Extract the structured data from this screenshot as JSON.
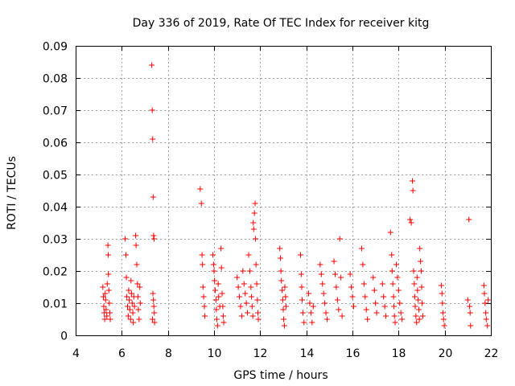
{
  "chart_data": {
    "type": "scatter",
    "title": "Day 336 of 2019, Rate Of TEC Index for receiver kitg",
    "xlabel": "GPS time / hours",
    "ylabel": "ROTI / TECUs",
    "xlim": [
      4,
      22
    ],
    "ylim": [
      0,
      0.09
    ],
    "xticks": [
      4,
      6,
      8,
      10,
      12,
      14,
      16,
      18,
      20,
      22
    ],
    "xtick_labels": [
      "4",
      "6",
      "8",
      "10",
      "12",
      "14",
      "16",
      "18",
      "20",
      "22"
    ],
    "yticks": [
      0,
      0.01,
      0.02,
      0.03,
      0.04,
      0.05,
      0.06,
      0.07,
      0.08,
      0.09
    ],
    "ytick_labels": [
      "0",
      "0.01",
      "0.02",
      "0.03",
      "0.04",
      "0.05",
      "0.06",
      "0.07",
      "0.08",
      "0.09"
    ],
    "grid": true,
    "marker": "+",
    "color": "#ff0000",
    "series": [
      {
        "name": "ROTI",
        "points": [
          [
            5.18,
            0.015
          ],
          [
            5.2,
            0.012
          ],
          [
            5.22,
            0.009
          ],
          [
            5.24,
            0.007
          ],
          [
            5.26,
            0.005
          ],
          [
            5.28,
            0.013
          ],
          [
            5.3,
            0.011
          ],
          [
            5.32,
            0.008
          ],
          [
            5.35,
            0.006
          ],
          [
            5.37,
            0.016
          ],
          [
            5.4,
            0.028
          ],
          [
            5.41,
            0.025
          ],
          [
            5.42,
            0.019
          ],
          [
            5.44,
            0.014
          ],
          [
            5.46,
            0.01
          ],
          [
            5.48,
            0.007
          ],
          [
            5.5,
            0.005
          ],
          [
            6.15,
            0.03
          ],
          [
            6.18,
            0.025
          ],
          [
            6.2,
            0.018
          ],
          [
            6.22,
            0.012
          ],
          [
            6.25,
            0.009
          ],
          [
            6.28,
            0.006
          ],
          [
            6.3,
            0.014
          ],
          [
            6.32,
            0.011
          ],
          [
            6.35,
            0.008
          ],
          [
            6.38,
            0.005
          ],
          [
            6.4,
            0.017
          ],
          [
            6.42,
            0.013
          ],
          [
            6.45,
            0.01
          ],
          [
            6.48,
            0.007
          ],
          [
            6.5,
            0.004
          ],
          [
            6.52,
            0.012
          ],
          [
            6.55,
            0.009
          ],
          [
            6.6,
            0.031
          ],
          [
            6.62,
            0.028
          ],
          [
            6.65,
            0.022
          ],
          [
            6.68,
            0.016
          ],
          [
            6.7,
            0.012
          ],
          [
            6.72,
            0.008
          ],
          [
            6.75,
            0.005
          ],
          [
            6.78,
            0.015
          ],
          [
            6.8,
            0.01
          ],
          [
            7.3,
            0.084
          ],
          [
            7.32,
            0.07
          ],
          [
            7.34,
            0.061
          ],
          [
            7.36,
            0.043
          ],
          [
            7.38,
            0.031
          ],
          [
            7.4,
            0.03
          ],
          [
            7.35,
            0.013
          ],
          [
            7.37,
            0.011
          ],
          [
            7.39,
            0.009
          ],
          [
            7.41,
            0.007
          ],
          [
            7.33,
            0.005
          ],
          [
            7.42,
            0.004
          ],
          [
            9.4,
            0.0455
          ],
          [
            9.45,
            0.041
          ],
          [
            9.48,
            0.025
          ],
          [
            9.5,
            0.022
          ],
          [
            9.52,
            0.015
          ],
          [
            9.55,
            0.012
          ],
          [
            9.58,
            0.009
          ],
          [
            9.6,
            0.006
          ],
          [
            9.95,
            0.025
          ],
          [
            9.98,
            0.022
          ],
          [
            10.0,
            0.02
          ],
          [
            10.02,
            0.017
          ],
          [
            10.05,
            0.014
          ],
          [
            10.08,
            0.011
          ],
          [
            10.1,
            0.008
          ],
          [
            10.12,
            0.005
          ],
          [
            10.15,
            0.003
          ],
          [
            10.18,
            0.016
          ],
          [
            10.2,
            0.012
          ],
          [
            10.25,
            0.009
          ],
          [
            10.3,
            0.027
          ],
          [
            10.32,
            0.021
          ],
          [
            10.35,
            0.013
          ],
          [
            10.38,
            0.009
          ],
          [
            10.4,
            0.006
          ],
          [
            10.42,
            0.004
          ],
          [
            11.0,
            0.018
          ],
          [
            11.05,
            0.015
          ],
          [
            11.1,
            0.012
          ],
          [
            11.15,
            0.009
          ],
          [
            11.2,
            0.006
          ],
          [
            11.25,
            0.02
          ],
          [
            11.3,
            0.016
          ],
          [
            11.35,
            0.013
          ],
          [
            11.4,
            0.01
          ],
          [
            11.45,
            0.007
          ],
          [
            11.5,
            0.025
          ],
          [
            11.55,
            0.02
          ],
          [
            11.6,
            0.015
          ],
          [
            11.62,
            0.012
          ],
          [
            11.65,
            0.009
          ],
          [
            11.68,
            0.006
          ],
          [
            11.7,
            0.035
          ],
          [
            11.72,
            0.033
          ],
          [
            11.75,
            0.038
          ],
          [
            11.78,
            0.041
          ],
          [
            11.8,
            0.03
          ],
          [
            11.82,
            0.022
          ],
          [
            11.85,
            0.016
          ],
          [
            11.88,
            0.011
          ],
          [
            11.9,
            0.007
          ],
          [
            11.92,
            0.005
          ],
          [
            12.85,
            0.027
          ],
          [
            12.88,
            0.024
          ],
          [
            12.9,
            0.02
          ],
          [
            12.92,
            0.017
          ],
          [
            12.95,
            0.014
          ],
          [
            12.98,
            0.011
          ],
          [
            13.0,
            0.008
          ],
          [
            13.02,
            0.005
          ],
          [
            13.05,
            0.003
          ],
          [
            13.07,
            0.015
          ],
          [
            13.1,
            0.012
          ],
          [
            13.12,
            0.009
          ],
          [
            13.75,
            0.025
          ],
          [
            13.78,
            0.019
          ],
          [
            13.8,
            0.015
          ],
          [
            13.82,
            0.011
          ],
          [
            13.85,
            0.007
          ],
          [
            13.9,
            0.004
          ],
          [
            14.1,
            0.013
          ],
          [
            14.15,
            0.01
          ],
          [
            14.2,
            0.007
          ],
          [
            14.25,
            0.004
          ],
          [
            14.3,
            0.009
          ],
          [
            14.6,
            0.022
          ],
          [
            14.65,
            0.019
          ],
          [
            14.7,
            0.016
          ],
          [
            14.75,
            0.013
          ],
          [
            14.8,
            0.01
          ],
          [
            14.85,
            0.007
          ],
          [
            14.9,
            0.005
          ],
          [
            15.2,
            0.023
          ],
          [
            15.25,
            0.019
          ],
          [
            15.3,
            0.015
          ],
          [
            15.35,
            0.011
          ],
          [
            15.4,
            0.008
          ],
          [
            15.45,
            0.03
          ],
          [
            15.5,
            0.018
          ],
          [
            15.55,
            0.006
          ],
          [
            15.9,
            0.019
          ],
          [
            15.95,
            0.015
          ],
          [
            16.0,
            0.012
          ],
          [
            16.05,
            0.009
          ],
          [
            16.4,
            0.027
          ],
          [
            16.45,
            0.022
          ],
          [
            16.5,
            0.016
          ],
          [
            16.55,
            0.012
          ],
          [
            16.6,
            0.008
          ],
          [
            16.65,
            0.005
          ],
          [
            16.9,
            0.018
          ],
          [
            16.95,
            0.014
          ],
          [
            17.0,
            0.01
          ],
          [
            17.05,
            0.007
          ],
          [
            17.3,
            0.016
          ],
          [
            17.35,
            0.012
          ],
          [
            17.4,
            0.009
          ],
          [
            17.45,
            0.006
          ],
          [
            17.65,
            0.032
          ],
          [
            17.7,
            0.025
          ],
          [
            17.72,
            0.02
          ],
          [
            17.75,
            0.016
          ],
          [
            17.78,
            0.012
          ],
          [
            17.8,
            0.009
          ],
          [
            17.82,
            0.006
          ],
          [
            17.85,
            0.004
          ],
          [
            17.9,
            0.022
          ],
          [
            17.95,
            0.018
          ],
          [
            18.0,
            0.014
          ],
          [
            18.05,
            0.01
          ],
          [
            18.1,
            0.007
          ],
          [
            18.15,
            0.005
          ],
          [
            18.5,
            0.036
          ],
          [
            18.55,
            0.035
          ],
          [
            18.6,
            0.048
          ],
          [
            18.62,
            0.045
          ],
          [
            18.65,
            0.02
          ],
          [
            18.68,
            0.016
          ],
          [
            18.7,
            0.012
          ],
          [
            18.72,
            0.009
          ],
          [
            18.75,
            0.006
          ],
          [
            18.78,
            0.004
          ],
          [
            18.8,
            0.018
          ],
          [
            18.82,
            0.014
          ],
          [
            18.85,
            0.011
          ],
          [
            18.88,
            0.008
          ],
          [
            18.9,
            0.005
          ],
          [
            18.92,
            0.027
          ],
          [
            18.95,
            0.023
          ],
          [
            18.98,
            0.02
          ],
          [
            19.0,
            0.015
          ],
          [
            19.02,
            0.01
          ],
          [
            19.05,
            0.006
          ],
          [
            19.85,
            0.0155
          ],
          [
            19.88,
            0.013
          ],
          [
            19.9,
            0.01
          ],
          [
            19.92,
            0.007
          ],
          [
            19.95,
            0.005
          ],
          [
            19.98,
            0.003
          ],
          [
            21.0,
            0.011
          ],
          [
            21.05,
            0.036
          ],
          [
            21.08,
            0.009
          ],
          [
            21.1,
            0.007
          ],
          [
            21.12,
            0.003
          ],
          [
            21.7,
            0.0155
          ],
          [
            21.72,
            0.013
          ],
          [
            21.75,
            0.01
          ],
          [
            21.78,
            0.007
          ],
          [
            21.8,
            0.005
          ],
          [
            21.85,
            0.003
          ],
          [
            21.88,
            0.011
          ]
        ]
      }
    ]
  }
}
